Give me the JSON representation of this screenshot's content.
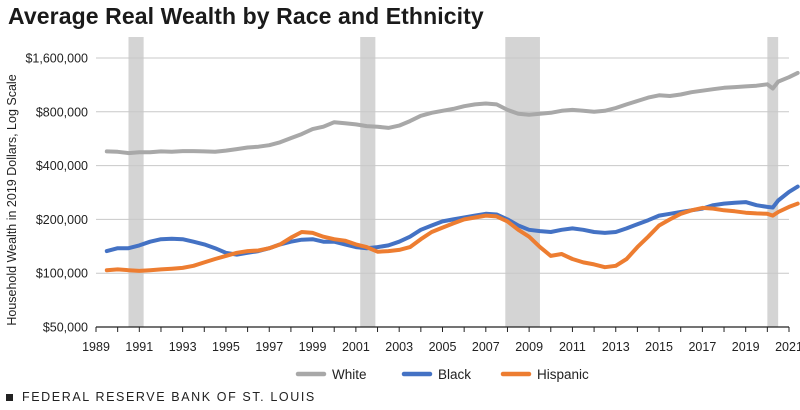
{
  "title": "Average Real Wealth by Race and Ethnicity",
  "footer": "FEDERAL RESERVE BANK OF ST. LOUIS",
  "colors": {
    "White": "#a8a8a8",
    "Black": "#4472c4",
    "Hispanic": "#ed7d31",
    "recession": "#d4d4d4",
    "grid": "#c8c8c8",
    "axis": "#222222"
  },
  "chart_data": {
    "type": "line",
    "title": "Average Real Wealth by Race and Ethnicity",
    "xlabel": "",
    "ylabel": "Household Wealth in 2019 Dollars, Log Scale",
    "yscale": "log",
    "ylim": [
      50000,
      1600000
    ],
    "xlim": [
      1989,
      2021
    ],
    "y_ticks": [
      50000,
      100000,
      200000,
      400000,
      800000,
      1600000
    ],
    "y_tick_labels": [
      "$50,000",
      "$100,000",
      "$200,000",
      "$400,000",
      "$800,000",
      "$1,600,000"
    ],
    "x_ticks": [
      1989,
      1991,
      1993,
      1995,
      1997,
      1999,
      2001,
      2003,
      2005,
      2007,
      2009,
      2011,
      2013,
      2015,
      2017,
      2019,
      2021
    ],
    "x_tick_labels": [
      "1989",
      "1991",
      "1993",
      "1995",
      "1997",
      "1999",
      "2001",
      "2003",
      "2005",
      "2007",
      "2009",
      "2011",
      "2013",
      "2015",
      "2017",
      "2019",
      "2021"
    ],
    "recessions": [
      [
        1990.5,
        1991.2
      ],
      [
        2001.2,
        2001.9
      ],
      [
        2007.9,
        2009.5
      ],
      [
        2020.0,
        2020.5
      ]
    ],
    "legend_position": "bottom-center",
    "series": [
      {
        "name": "White",
        "x": [
          1989.5,
          1990,
          1990.5,
          1991,
          1991.5,
          1992,
          1992.5,
          1993,
          1993.5,
          1994,
          1994.5,
          1995,
          1995.5,
          1996,
          1996.5,
          1997,
          1997.5,
          1998,
          1998.5,
          1999,
          1999.5,
          2000,
          2000.5,
          2001,
          2001.5,
          2002,
          2002.5,
          2003,
          2003.5,
          2004,
          2004.5,
          2005,
          2005.5,
          2006,
          2006.5,
          2007,
          2007.5,
          2008,
          2008.5,
          2009,
          2009.5,
          2010,
          2010.5,
          2011,
          2011.5,
          2012,
          2012.5,
          2013,
          2013.5,
          2014,
          2014.5,
          2015,
          2015.5,
          2016,
          2016.5,
          2017,
          2017.5,
          2018,
          2018.5,
          2019,
          2019.5,
          2020,
          2020.25,
          2020.5,
          2021,
          2021.4
        ],
        "values": [
          480000,
          478000,
          470000,
          475000,
          475000,
          480000,
          478000,
          482000,
          482000,
          480000,
          478000,
          485000,
          495000,
          505000,
          510000,
          520000,
          540000,
          570000,
          600000,
          640000,
          660000,
          700000,
          690000,
          680000,
          665000,
          660000,
          650000,
          670000,
          710000,
          760000,
          790000,
          810000,
          830000,
          860000,
          880000,
          890000,
          880000,
          820000,
          780000,
          770000,
          780000,
          790000,
          810000,
          820000,
          810000,
          800000,
          810000,
          840000,
          880000,
          920000,
          960000,
          990000,
          980000,
          1000000,
          1030000,
          1050000,
          1070000,
          1090000,
          1100000,
          1110000,
          1120000,
          1140000,
          1080000,
          1180000,
          1250000,
          1320000
        ]
      },
      {
        "name": "Black",
        "x": [
          1989.5,
          1990,
          1990.5,
          1991,
          1991.5,
          1992,
          1992.5,
          1993,
          1993.5,
          1994,
          1994.5,
          1995,
          1995.5,
          1996,
          1996.5,
          1997,
          1997.5,
          1998,
          1998.5,
          1999,
          1999.5,
          2000,
          2000.5,
          2001,
          2001.5,
          2002,
          2002.5,
          2003,
          2003.5,
          2004,
          2004.5,
          2005,
          2005.5,
          2006,
          2006.5,
          2007,
          2007.5,
          2008,
          2008.5,
          2009,
          2009.5,
          2010,
          2010.5,
          2011,
          2011.5,
          2012,
          2012.5,
          2013,
          2013.5,
          2014,
          2014.5,
          2015,
          2015.5,
          2016,
          2016.5,
          2017,
          2017.5,
          2018,
          2018.5,
          2019,
          2019.5,
          2020,
          2020.25,
          2020.5,
          2021,
          2021.4
        ],
        "values": [
          133000,
          138000,
          138000,
          143000,
          150000,
          155000,
          156000,
          155000,
          150000,
          145000,
          138000,
          130000,
          127000,
          130000,
          133000,
          138000,
          145000,
          150000,
          154000,
          155000,
          150000,
          150000,
          145000,
          140000,
          138000,
          140000,
          143000,
          150000,
          160000,
          175000,
          185000,
          195000,
          200000,
          205000,
          210000,
          215000,
          213000,
          200000,
          185000,
          175000,
          172000,
          170000,
          175000,
          178000,
          175000,
          170000,
          168000,
          170000,
          178000,
          188000,
          198000,
          210000,
          215000,
          220000,
          225000,
          230000,
          240000,
          245000,
          248000,
          250000,
          240000,
          235000,
          233000,
          255000,
          285000,
          305000
        ]
      },
      {
        "name": "Hispanic",
        "x": [
          1989.5,
          1990,
          1990.5,
          1991,
          1991.5,
          1992,
          1992.5,
          1993,
          1993.5,
          1994,
          1994.5,
          1995,
          1995.5,
          1996,
          1996.5,
          1997,
          1997.5,
          1998,
          1998.5,
          1999,
          1999.5,
          2000,
          2000.5,
          2001,
          2001.5,
          2002,
          2002.5,
          2003,
          2003.5,
          2004,
          2004.5,
          2005,
          2005.5,
          2006,
          2006.5,
          2007,
          2007.5,
          2008,
          2008.5,
          2009,
          2009.5,
          2010,
          2010.5,
          2011,
          2011.5,
          2012,
          2012.5,
          2013,
          2013.5,
          2014,
          2014.5,
          2015,
          2015.5,
          2016,
          2016.5,
          2017,
          2017.5,
          2018,
          2018.5,
          2019,
          2019.5,
          2020,
          2020.25,
          2020.5,
          2021,
          2021.4
        ],
        "values": [
          104000,
          105000,
          104000,
          103000,
          104000,
          105000,
          106000,
          107000,
          110000,
          115000,
          120000,
          125000,
          130000,
          133000,
          134000,
          138000,
          145000,
          158000,
          170000,
          168000,
          160000,
          155000,
          152000,
          145000,
          140000,
          132000,
          133000,
          135000,
          140000,
          155000,
          170000,
          180000,
          190000,
          200000,
          205000,
          210000,
          208000,
          195000,
          175000,
          160000,
          140000,
          125000,
          128000,
          120000,
          115000,
          112000,
          108000,
          110000,
          120000,
          140000,
          160000,
          185000,
          200000,
          215000,
          225000,
          232000,
          230000,
          225000,
          222000,
          218000,
          216000,
          215000,
          210000,
          220000,
          235000,
          245000
        ]
      }
    ]
  }
}
